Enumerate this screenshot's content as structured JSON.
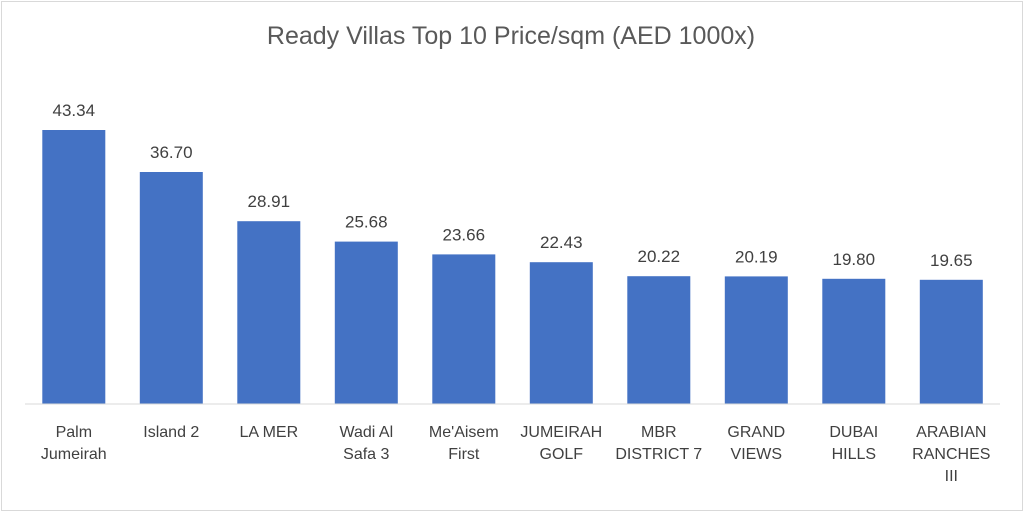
{
  "chart_data": {
    "type": "bar",
    "title": "Ready Villas Top 10 Price/sqm (AED 1000x)",
    "categories": [
      [
        "Palm",
        "Jumeirah"
      ],
      [
        "Island 2"
      ],
      [
        "LA MER"
      ],
      [
        "Wadi Al",
        "Safa 3"
      ],
      [
        "Me'Aisem",
        "First"
      ],
      [
        "JUMEIRAH",
        "GOLF"
      ],
      [
        "MBR",
        "DISTRICT 7"
      ],
      [
        "GRAND",
        "VIEWS"
      ],
      [
        "DUBAI",
        "HILLS"
      ],
      [
        "ARABIAN",
        "RANCHES",
        "III"
      ]
    ],
    "values": [
      43.34,
      36.7,
      28.91,
      25.68,
      23.66,
      22.43,
      20.22,
      20.19,
      19.8,
      19.65
    ],
    "value_labels": [
      "43.34",
      "36.70",
      "28.91",
      "25.68",
      "23.66",
      "22.43",
      "20.22",
      "20.19",
      "19.80",
      "19.65"
    ],
    "ylim": [
      0,
      43.34
    ],
    "grid": false,
    "legend": "none",
    "bar_color": "#4472c4",
    "axis_color": "#d9d9d9",
    "text_color": "#404040"
  }
}
